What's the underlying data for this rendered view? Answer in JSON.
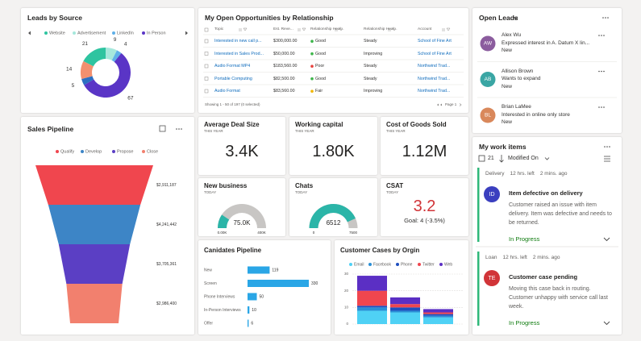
{
  "chart_data": [
    {
      "type": "pie",
      "title": "Leads by Source",
      "categories": [
        "Website",
        "Advertisement",
        "LinkedIn",
        "In Person",
        null,
        null
      ],
      "values": [
        21,
        9,
        4,
        67,
        5,
        14
      ],
      "colors": [
        "#2ec4a0",
        "#a6e8dc",
        "#5fb0e8",
        "#5a35c6",
        "#2c6fc2",
        "#f2906f"
      ]
    },
    {
      "type": "funnel",
      "title": "Sales Pipeline",
      "categories": [
        "Qualify",
        "Develop",
        "Propose",
        "Close"
      ],
      "values": [
        2911187,
        4241442,
        3705361,
        2986400
      ],
      "value_labels": [
        "$2,911,187",
        "$4,241,442",
        "$3,705,361",
        "$2,986,400"
      ],
      "colors": [
        "#f0464e",
        "#3d85c6",
        "#5b3fc4",
        "#f2806e"
      ]
    },
    {
      "type": "gauge",
      "title": "New business",
      "subtitle": "TODAY",
      "values": [
        75000
      ],
      "value_labels": [
        "75.0K"
      ],
      "ylim": [
        0,
        400000
      ],
      "yticks": [
        {
          "value": 0,
          "label": "0.00K"
        },
        {
          "value": 400000,
          "label": "400K"
        }
      ],
      "color": "#2bb5a8"
    },
    {
      "type": "gauge",
      "title": "Chats",
      "subtitle": "TODAY",
      "values": [
        6512
      ],
      "ylim": [
        0,
        7500
      ],
      "yticks": [
        0,
        7500
      ],
      "color": "#2bb5a8"
    },
    {
      "type": "bar",
      "orientation": "horizontal",
      "title": "Canidates Pipeline",
      "categories": [
        "New",
        "Screen",
        "Phone Interviews",
        "In-Person Interviews",
        "Offer"
      ],
      "values": [
        119,
        330,
        50,
        10,
        6
      ],
      "color": "#2aa6e6"
    },
    {
      "type": "bar",
      "stacked": true,
      "title": "Customer Cases by Orgin",
      "categories": [
        null,
        null,
        null
      ],
      "series": [
        {
          "name": "Email",
          "color": "#4fd1f5",
          "values": [
            8,
            7,
            4
          ]
        },
        {
          "name": "Facebook",
          "color": "#2a8fd6",
          "values": [
            2,
            1,
            1
          ]
        },
        {
          "name": "Phone",
          "color": "#1f4fbf",
          "values": [
            1,
            2,
            1
          ]
        },
        {
          "name": "Twitter",
          "color": "#f0464e",
          "values": [
            9,
            2,
            1
          ]
        },
        {
          "name": "Web",
          "color": "#5b2fc4",
          "values": [
            9,
            4,
            2
          ]
        }
      ],
      "ylim": [
        0,
        30
      ],
      "yticks": [
        0,
        10,
        20,
        30
      ],
      "grid": true
    }
  ],
  "opportunities": {
    "title": "My Open Opportunities by Relationship",
    "columns": [
      "Topic",
      "Est. Reve...",
      "Relationship Heal...",
      "Relationship Heal...",
      "Account"
    ],
    "rows": [
      [
        "Interested in new call p...",
        "$300,000.00",
        "Good",
        "Steady",
        "School of Fine Art"
      ],
      [
        "Interested in Sales Prod...",
        "$50,000.00",
        "Good",
        "Improving",
        "School of Fine Art"
      ],
      [
        "Audio Format MP4",
        "$183,560.00",
        "Poor",
        "Steady",
        "Northwind Trad..."
      ],
      [
        "Portable Computing",
        "$82,500.00",
        "Good",
        "Steady",
        "Northwind Trad..."
      ],
      [
        "Audio Format",
        "$83,560.00",
        "Fair",
        "Improving",
        "Northwind Trad..."
      ]
    ],
    "health_colors": [
      "#3db54a",
      "#3db54a",
      "#e8413c",
      "#3db54a",
      "#f2b600"
    ],
    "footer": "Showing 1 - 50 of 197 (0 selected)",
    "page": "Page 1"
  },
  "kpis": [
    {
      "title": "Average Deal Size",
      "subtitle": "THIS YEAR",
      "value": "3.4K"
    },
    {
      "title": "Working capital",
      "subtitle": "THIS YEAR",
      "value": "1.80K"
    },
    {
      "title": "Cost of Goods Sold",
      "subtitle": "THIS YEAR",
      "value": "1.12M"
    }
  ],
  "csat": {
    "title": "CSAT",
    "subtitle": "TODAY",
    "value": "3.2",
    "goal": "Goal: 4 (-3.5%)",
    "color": "#d13438"
  },
  "open_leads": {
    "title": "Open Leads",
    "items": [
      {
        "initials": "AW",
        "name": "Alex Wu",
        "detail": "Expressed interest in A. Datum X lin...",
        "status": "New",
        "color": "#8b5c9e"
      },
      {
        "initials": "AB",
        "name": "Allison Brown",
        "detail": "Wants to expand",
        "status": "New",
        "color": "#3aa6a4"
      },
      {
        "initials": "BL",
        "name": "Brian LaMee",
        "detail": "Interested in online only store",
        "status": "New",
        "color": "#d9885b"
      }
    ]
  },
  "work_items": {
    "title": "My work items",
    "count": "21",
    "sort": "Modified On",
    "items": [
      {
        "tag": "Delivery",
        "due": "12 hrs. left",
        "updated": "2 mins. ago",
        "initials": "ID",
        "color": "#3b3fbf",
        "title": "Item defective on delivery",
        "body": "Customer raised an issue with item delivery. Item was defective and needs to be returned.",
        "status": "In Progress"
      },
      {
        "tag": "Loan",
        "due": "12 hrs. left",
        "updated": "2 mins. ago",
        "initials": "TE",
        "color": "#d13438",
        "title": "Customer case pending",
        "body": "Moving this case back in routing. Customer unhappy with service call last week.",
        "status": "In Progress"
      }
    ]
  }
}
